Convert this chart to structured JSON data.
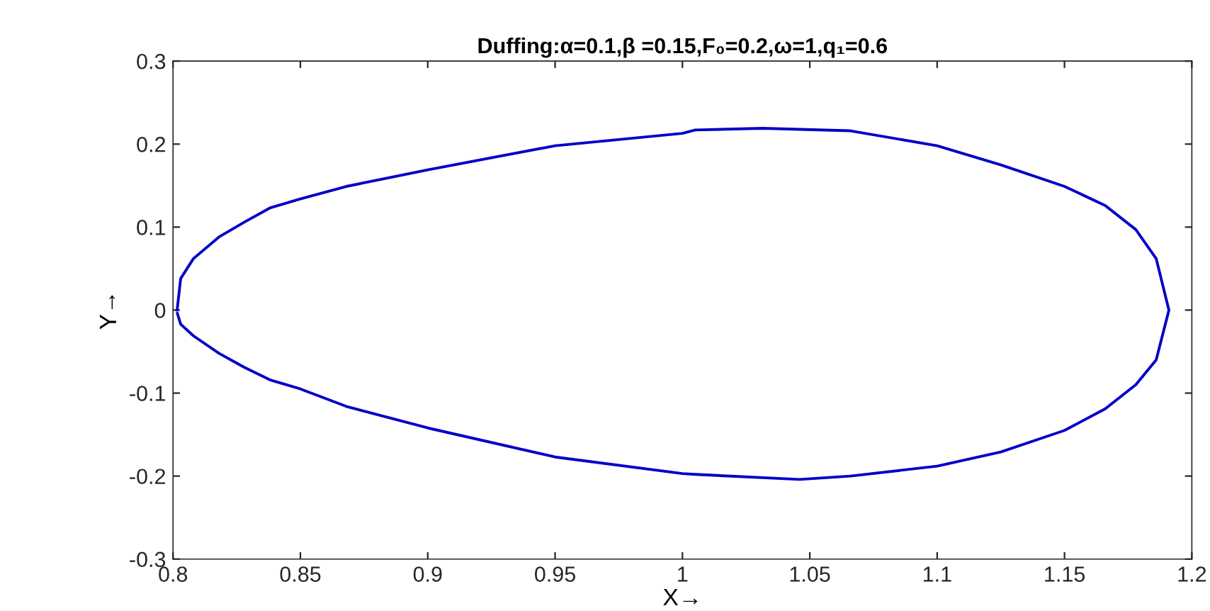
{
  "chart_data": {
    "type": "line",
    "title": "Duffing:α=0.1,β =0.15,F₀=0.2,ω=1,q₁=0.6",
    "xlabel": "X→",
    "ylabel": "Y→",
    "series": [
      {
        "color": "#0000c8",
        "x": [
          0.8016,
          0.803,
          0.808,
          0.818,
          0.828,
          0.838,
          0.85,
          0.868,
          0.9,
          0.95,
          1.0,
          1.005,
          1.0315,
          1.066,
          1.1,
          1.125,
          1.15,
          1.166,
          1.178,
          1.186,
          1.191,
          1.186,
          1.178,
          1.166,
          1.15,
          1.125,
          1.1,
          1.066,
          1.046,
          1.005,
          1.0,
          0.95,
          0.9,
          0.868,
          0.85,
          0.838,
          0.828,
          0.818,
          0.808,
          0.803,
          0.8017
        ],
        "values": [
          0,
          0.038,
          0.062,
          0.088,
          0.106,
          0.123,
          0.134,
          0.149,
          0.169,
          0.198,
          0.213,
          0.217,
          0.219,
          0.216,
          0.198,
          0.175,
          0.149,
          0.126,
          0.097,
          0.062,
          0,
          -0.06,
          -0.09,
          -0.119,
          -0.145,
          -0.171,
          -0.188,
          -0.2,
          -0.204,
          -0.198,
          -0.197,
          -0.177,
          -0.142,
          -0.116,
          -0.095,
          -0.084,
          -0.069,
          -0.052,
          -0.031,
          -0.017,
          -0.004
        ]
      }
    ],
    "xlim": [
      0.8,
      1.2
    ],
    "xticks": [
      0.8,
      0.85,
      0.9,
      0.95,
      1,
      1.05,
      1.1,
      1.15,
      1.2
    ],
    "ylim": [
      -0.3,
      0.3
    ],
    "yticks": [
      -0.3,
      -0.2,
      -0.1,
      0,
      0.1,
      0.2,
      0.3
    ],
    "grid": false,
    "legend": false,
    "marker": "none",
    "line_style": "solid"
  }
}
